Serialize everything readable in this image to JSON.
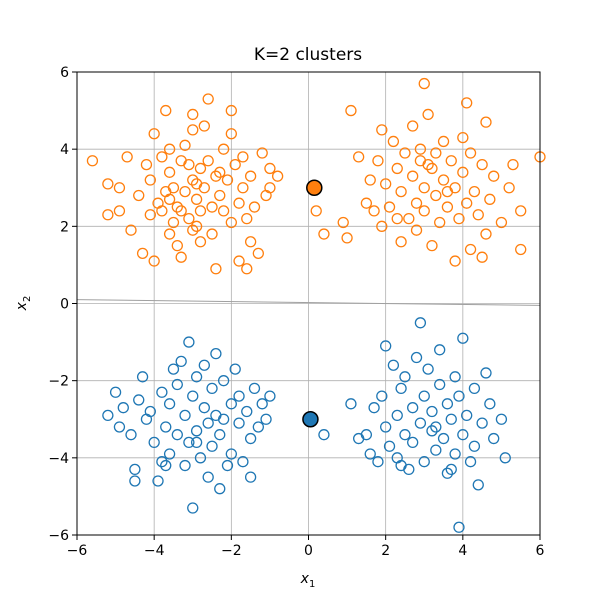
{
  "chart_data": {
    "type": "scatter",
    "title": "K=2 clusters",
    "xlabel": "x",
    "xlabel_sub": "1",
    "ylabel": "x",
    "ylabel_sub": "2",
    "xlim": [
      -6,
      6
    ],
    "ylim": [
      -6,
      6
    ],
    "xticks": [
      -6,
      -4,
      -2,
      0,
      2,
      4,
      6
    ],
    "yticks": [
      -6,
      -4,
      -2,
      0,
      2,
      4,
      6
    ],
    "grid": true,
    "colors": {
      "cluster_upper": "#ff7f0e",
      "cluster_lower": "#1f77b4"
    },
    "decision_boundary": {
      "x": [
        -6,
        6
      ],
      "y": [
        0.1,
        -0.05
      ]
    },
    "centroids": [
      {
        "cluster": "upper",
        "x": 0.15,
        "y": 3.0
      },
      {
        "cluster": "lower",
        "x": 0.05,
        "y": -3.0
      }
    ],
    "series": [
      {
        "cluster": "upper",
        "points": [
          [
            -5.6,
            3.7
          ],
          [
            -5.2,
            3.1
          ],
          [
            -5.2,
            2.3
          ],
          [
            -4.9,
            2.4
          ],
          [
            -4.9,
            3.0
          ],
          [
            -4.7,
            3.8
          ],
          [
            -4.6,
            1.9
          ],
          [
            -4.4,
            2.8
          ],
          [
            -4.3,
            1.3
          ],
          [
            -4.1,
            3.2
          ],
          [
            -4.1,
            2.3
          ],
          [
            -4.0,
            1.1
          ],
          [
            -4.0,
            4.4
          ],
          [
            -3.9,
            2.6
          ],
          [
            -3.8,
            3.8
          ],
          [
            -3.8,
            2.4
          ],
          [
            -3.7,
            2.9
          ],
          [
            -3.6,
            4.0
          ],
          [
            -3.6,
            3.4
          ],
          [
            -3.6,
            1.8
          ],
          [
            -3.7,
            5.0
          ],
          [
            -3.5,
            3.0
          ],
          [
            -3.5,
            2.1
          ],
          [
            -3.4,
            1.5
          ],
          [
            -3.3,
            3.7
          ],
          [
            -3.3,
            2.4
          ],
          [
            -3.3,
            1.2
          ],
          [
            -3.2,
            4.1
          ],
          [
            -3.2,
            2.9
          ],
          [
            -3.1,
            3.6
          ],
          [
            -3.1,
            2.2
          ],
          [
            -3.0,
            3.2
          ],
          [
            -3.0,
            1.9
          ],
          [
            -3.0,
            4.9
          ],
          [
            -2.9,
            2.7
          ],
          [
            -2.9,
            2.0
          ],
          [
            -2.8,
            3.5
          ],
          [
            -2.8,
            2.4
          ],
          [
            -2.8,
            1.6
          ],
          [
            -2.7,
            3.0
          ],
          [
            -2.7,
            4.6
          ],
          [
            -2.6,
            5.3
          ],
          [
            -2.6,
            3.7
          ],
          [
            -2.5,
            2.5
          ],
          [
            -2.5,
            1.8
          ],
          [
            -2.4,
            0.9
          ],
          [
            -2.4,
            3.3
          ],
          [
            -2.3,
            2.8
          ],
          [
            -2.2,
            2.4
          ],
          [
            -2.2,
            4.0
          ],
          [
            -2.1,
            3.2
          ],
          [
            -2.0,
            2.1
          ],
          [
            -2.0,
            5.0
          ],
          [
            -2.0,
            4.4
          ],
          [
            -1.9,
            3.6
          ],
          [
            -1.8,
            1.1
          ],
          [
            -1.8,
            2.6
          ],
          [
            -1.7,
            3.8
          ],
          [
            -1.7,
            3.0
          ],
          [
            -1.6,
            0.9
          ],
          [
            -1.6,
            2.2
          ],
          [
            -1.5,
            1.6
          ],
          [
            -1.5,
            3.3
          ],
          [
            -1.4,
            2.5
          ],
          [
            -1.3,
            1.3
          ],
          [
            -1.2,
            3.9
          ],
          [
            -1.1,
            2.8
          ],
          [
            -1.0,
            3.5
          ],
          [
            -1.0,
            3.0
          ],
          [
            -0.8,
            3.3
          ],
          [
            -3.0,
            4.5
          ],
          [
            -2.9,
            3.1
          ],
          [
            -3.4,
            2.5
          ],
          [
            -4.2,
            3.6
          ],
          [
            -2.3,
            3.4
          ],
          [
            -3.6,
            2.7
          ],
          [
            0.2,
            2.4
          ],
          [
            0.4,
            1.8
          ],
          [
            0.9,
            2.1
          ],
          [
            1.0,
            1.7
          ],
          [
            1.1,
            5.0
          ],
          [
            1.3,
            3.8
          ],
          [
            1.5,
            2.6
          ],
          [
            1.6,
            3.2
          ],
          [
            1.7,
            2.4
          ],
          [
            1.8,
            3.7
          ],
          [
            1.9,
            4.5
          ],
          [
            1.9,
            2.0
          ],
          [
            2.0,
            3.1
          ],
          [
            2.1,
            2.5
          ],
          [
            2.2,
            4.2
          ],
          [
            2.3,
            3.5
          ],
          [
            2.4,
            1.6
          ],
          [
            2.4,
            2.9
          ],
          [
            2.5,
            3.9
          ],
          [
            2.6,
            2.2
          ],
          [
            2.7,
            3.3
          ],
          [
            2.7,
            4.6
          ],
          [
            2.8,
            1.9
          ],
          [
            2.8,
            2.6
          ],
          [
            2.9,
            3.7
          ],
          [
            3.0,
            5.7
          ],
          [
            3.0,
            3.0
          ],
          [
            3.0,
            2.4
          ],
          [
            3.1,
            4.9
          ],
          [
            3.2,
            3.5
          ],
          [
            3.2,
            1.5
          ],
          [
            3.3,
            2.8
          ],
          [
            3.3,
            3.9
          ],
          [
            3.4,
            2.1
          ],
          [
            3.5,
            3.2
          ],
          [
            3.5,
            4.2
          ],
          [
            3.6,
            2.5
          ],
          [
            3.7,
            3.7
          ],
          [
            3.8,
            1.1
          ],
          [
            3.8,
            3.0
          ],
          [
            3.9,
            2.2
          ],
          [
            4.0,
            4.3
          ],
          [
            4.0,
            3.4
          ],
          [
            4.1,
            2.6
          ],
          [
            4.1,
            5.2
          ],
          [
            4.2,
            1.4
          ],
          [
            4.2,
            3.9
          ],
          [
            4.3,
            2.9
          ],
          [
            4.4,
            2.3
          ],
          [
            4.5,
            3.6
          ],
          [
            4.6,
            1.8
          ],
          [
            4.6,
            4.7
          ],
          [
            4.7,
            2.7
          ],
          [
            4.8,
            3.3
          ],
          [
            5.0,
            2.1
          ],
          [
            5.2,
            3.0
          ],
          [
            5.3,
            3.6
          ],
          [
            5.5,
            2.4
          ],
          [
            5.5,
            1.4
          ],
          [
            6.0,
            3.8
          ],
          [
            3.1,
            3.6
          ],
          [
            2.3,
            2.2
          ],
          [
            3.6,
            2.9
          ],
          [
            4.5,
            1.2
          ],
          [
            2.9,
            4.0
          ]
        ]
      },
      {
        "cluster": "lower",
        "points": [
          [
            -5.2,
            -2.9
          ],
          [
            -5.0,
            -2.3
          ],
          [
            -4.9,
            -3.2
          ],
          [
            -4.8,
            -2.7
          ],
          [
            -4.6,
            -3.4
          ],
          [
            -4.5,
            -4.3
          ],
          [
            -4.5,
            -4.6
          ],
          [
            -4.4,
            -2.5
          ],
          [
            -4.3,
            -1.9
          ],
          [
            -4.2,
            -3.0
          ],
          [
            -4.1,
            -2.8
          ],
          [
            -4.0,
            -3.6
          ],
          [
            -3.9,
            -4.6
          ],
          [
            -3.8,
            -4.1
          ],
          [
            -3.8,
            -2.3
          ],
          [
            -3.7,
            -3.2
          ],
          [
            -3.6,
            -3.9
          ],
          [
            -3.6,
            -2.6
          ],
          [
            -3.5,
            -1.7
          ],
          [
            -3.4,
            -3.4
          ],
          [
            -3.4,
            -2.1
          ],
          [
            -3.3,
            -1.5
          ],
          [
            -3.2,
            -2.9
          ],
          [
            -3.2,
            -4.2
          ],
          [
            -3.1,
            -3.6
          ],
          [
            -3.1,
            -1.0
          ],
          [
            -3.0,
            -2.4
          ],
          [
            -3.0,
            -5.3
          ],
          [
            -2.9,
            -3.3
          ],
          [
            -2.9,
            -1.9
          ],
          [
            -2.8,
            -4.0
          ],
          [
            -2.7,
            -2.7
          ],
          [
            -2.7,
            -1.6
          ],
          [
            -2.6,
            -3.1
          ],
          [
            -2.6,
            -4.5
          ],
          [
            -2.5,
            -2.2
          ],
          [
            -2.5,
            -3.7
          ],
          [
            -2.4,
            -1.3
          ],
          [
            -2.4,
            -2.9
          ],
          [
            -2.3,
            -4.8
          ],
          [
            -2.3,
            -3.4
          ],
          [
            -2.2,
            -2.0
          ],
          [
            -2.1,
            -4.2
          ],
          [
            -2.0,
            -2.6
          ],
          [
            -2.0,
            -3.9
          ],
          [
            -1.9,
            -1.7
          ],
          [
            -1.8,
            -3.1
          ],
          [
            -1.8,
            -2.4
          ],
          [
            -1.7,
            -4.1
          ],
          [
            -1.6,
            -2.8
          ],
          [
            -1.5,
            -3.5
          ],
          [
            -1.5,
            -4.5
          ],
          [
            -1.4,
            -2.2
          ],
          [
            -1.3,
            -3.2
          ],
          [
            -1.2,
            -2.6
          ],
          [
            -1.1,
            -3.0
          ],
          [
            -1.0,
            -2.4
          ],
          [
            -2.9,
            -3.6
          ],
          [
            -3.7,
            -4.2
          ],
          [
            -2.2,
            -3.0
          ],
          [
            0.4,
            -3.4
          ],
          [
            1.1,
            -2.6
          ],
          [
            1.3,
            -3.5
          ],
          [
            1.5,
            -3.4
          ],
          [
            1.6,
            -3.9
          ],
          [
            1.7,
            -2.7
          ],
          [
            1.8,
            -4.1
          ],
          [
            1.9,
            -2.4
          ],
          [
            2.0,
            -1.1
          ],
          [
            2.0,
            -3.2
          ],
          [
            2.1,
            -3.7
          ],
          [
            2.2,
            -1.6
          ],
          [
            2.3,
            -2.9
          ],
          [
            2.3,
            -4.0
          ],
          [
            2.4,
            -2.2
          ],
          [
            2.5,
            -3.4
          ],
          [
            2.5,
            -1.9
          ],
          [
            2.6,
            -4.3
          ],
          [
            2.7,
            -2.7
          ],
          [
            2.7,
            -3.6
          ],
          [
            2.8,
            -1.4
          ],
          [
            2.9,
            -3.1
          ],
          [
            2.9,
            -0.5
          ],
          [
            3.0,
            -2.4
          ],
          [
            3.0,
            -4.1
          ],
          [
            3.1,
            -1.7
          ],
          [
            3.2,
            -3.3
          ],
          [
            3.2,
            -2.8
          ],
          [
            3.3,
            -3.8
          ],
          [
            3.4,
            -1.2
          ],
          [
            3.4,
            -2.1
          ],
          [
            3.5,
            -3.5
          ],
          [
            3.6,
            -4.4
          ],
          [
            3.6,
            -2.6
          ],
          [
            3.7,
            -3.0
          ],
          [
            3.8,
            -1.9
          ],
          [
            3.8,
            -3.9
          ],
          [
            3.9,
            -5.8
          ],
          [
            3.9,
            -2.4
          ],
          [
            4.0,
            -3.4
          ],
          [
            4.0,
            -0.9
          ],
          [
            4.1,
            -2.9
          ],
          [
            4.2,
            -4.1
          ],
          [
            4.3,
            -2.2
          ],
          [
            4.3,
            -3.7
          ],
          [
            4.4,
            -4.7
          ],
          [
            4.5,
            -3.1
          ],
          [
            4.6,
            -1.8
          ],
          [
            4.7,
            -2.6
          ],
          [
            4.8,
            -3.5
          ],
          [
            5.0,
            -3.0
          ],
          [
            5.1,
            -4.0
          ],
          [
            3.7,
            -4.3
          ],
          [
            2.4,
            -4.2
          ],
          [
            3.3,
            -3.2
          ]
        ]
      }
    ]
  }
}
